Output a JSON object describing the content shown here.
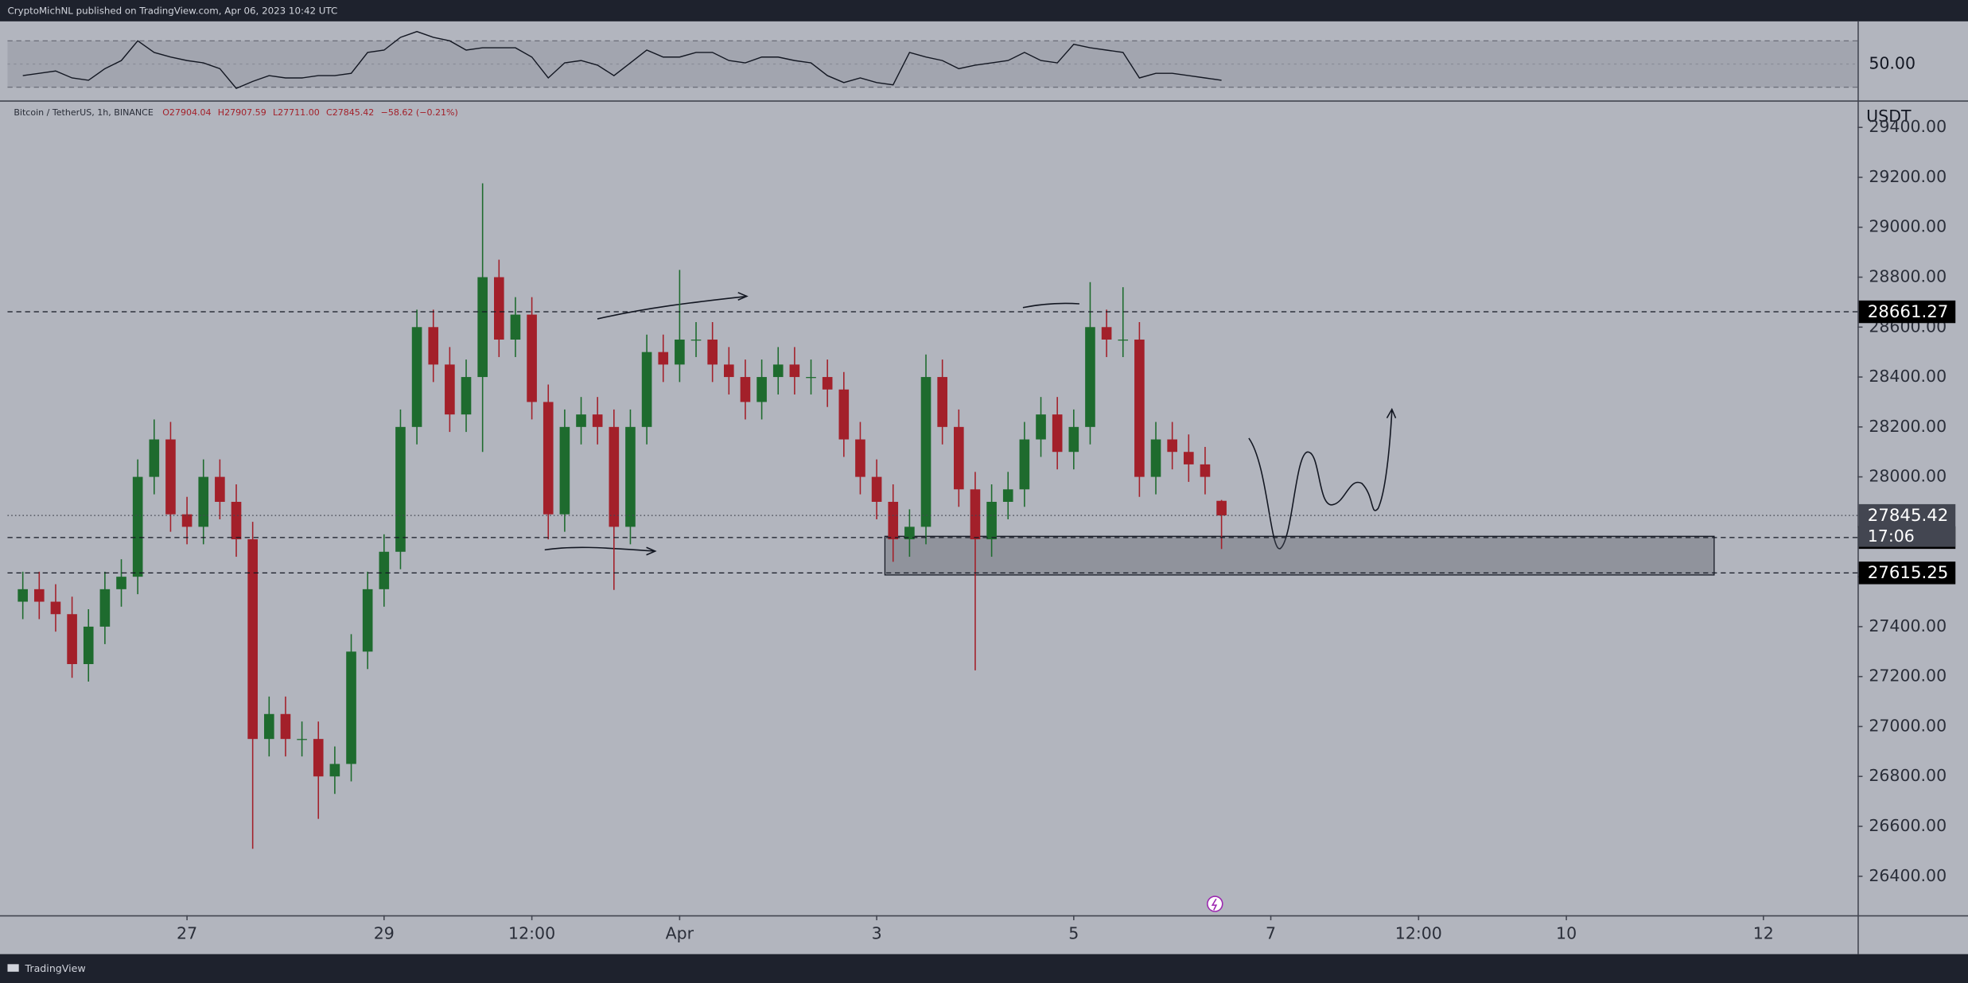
{
  "header": {
    "published": "CryptoMichNL published on TradingView.com, Apr 06, 2023 10:42 UTC"
  },
  "chart_data": {
    "type": "candlestick",
    "legend": {
      "symbol": "Bitcoin / TetherUS, 1h, BINANCE",
      "open": "O27904.04",
      "high": "H27907.59",
      "low": "L27711.00",
      "close": "C27845.42",
      "change": "−58.62 (−0.21%)"
    },
    "x": [
      -40,
      -36,
      -32,
      -28,
      -24,
      -20,
      -16,
      -12,
      -8,
      -4,
      0,
      4,
      8,
      12,
      16,
      20,
      24,
      28,
      32,
      36,
      40,
      44,
      48,
      52,
      56,
      60,
      64,
      68,
      72,
      76,
      80,
      84,
      88,
      92,
      96,
      100,
      104,
      108,
      112,
      116,
      120,
      124,
      128,
      132,
      136,
      140,
      144,
      148,
      152,
      156,
      160,
      164,
      168,
      172,
      176,
      180,
      184,
      188,
      192,
      196,
      200,
      204,
      208,
      212,
      216,
      220,
      224,
      228,
      232,
      236,
      240,
      244,
      248,
      252
    ],
    "open": [
      27500,
      27550,
      27500,
      27450,
      27250,
      27400,
      27550,
      27600,
      28000,
      28150,
      27850,
      27800,
      28000,
      27900,
      27750,
      26950,
      27050,
      26950,
      26950,
      26800,
      26850,
      27300,
      27550,
      27700,
      28200,
      28600,
      28450,
      28250,
      28400,
      28800,
      28550,
      28650,
      28300,
      27850,
      28200,
      28250,
      28200,
      27800,
      28200,
      28500,
      28450,
      28550,
      28550,
      28450,
      28400,
      28300,
      28400,
      28450,
      28400,
      28400,
      28350,
      28150,
      28000,
      27900,
      27750,
      27800,
      28400,
      28200,
      27950,
      27750,
      27900,
      27950,
      28150,
      28250,
      28100,
      28200,
      28600,
      28550,
      28550,
      28000,
      28150,
      28100,
      28050,
      27904.04
    ],
    "high": [
      27620,
      27620,
      27570,
      27520,
      27470,
      27620,
      27670,
      28070,
      28230,
      28220,
      27920,
      28070,
      28070,
      27970,
      27820,
      27120,
      27120,
      27020,
      27020,
      26920,
      27370,
      27620,
      27770,
      28270,
      28670,
      28670,
      28520,
      28470,
      29176,
      28870,
      28720,
      28720,
      28370,
      28270,
      28320,
      28320,
      28270,
      28270,
      28570,
      28570,
      28829,
      28620,
      28620,
      28520,
      28470,
      28470,
      28520,
      28520,
      28470,
      28470,
      28420,
      28220,
      28070,
      27970,
      27870,
      28490,
      28470,
      28270,
      28020,
      27970,
      28020,
      28220,
      28320,
      28320,
      28270,
      28780,
      28670,
      28760,
      28620,
      28220,
      28220,
      28170,
      28120,
      27907.59
    ],
    "low": [
      27430,
      27430,
      27380,
      27195,
      27180,
      27330,
      27480,
      27530,
      27930,
      27780,
      27730,
      27730,
      27830,
      27680,
      26510,
      26880,
      26880,
      26880,
      26630,
      26730,
      26780,
      27230,
      27480,
      27630,
      28130,
      28380,
      28180,
      28180,
      28100,
      28480,
      28480,
      28230,
      27750,
      27780,
      28130,
      28130,
      27547,
      27730,
      28130,
      28380,
      28380,
      28480,
      28380,
      28330,
      28230,
      28230,
      28330,
      28330,
      28330,
      28280,
      28080,
      27930,
      27830,
      27660,
      27680,
      27730,
      28130,
      27880,
      27225,
      27680,
      27830,
      27880,
      28080,
      28030,
      28030,
      28130,
      28480,
      28480,
      27920,
      27930,
      28030,
      27980,
      27930,
      27711
    ],
    "close": [
      27550,
      27500,
      27450,
      27250,
      27400,
      27550,
      27600,
      28000,
      28150,
      27850,
      27800,
      28000,
      27900,
      27750,
      26950,
      27050,
      26950,
      26950,
      26800,
      26850,
      27300,
      27550,
      27700,
      28200,
      28600,
      28450,
      28250,
      28400,
      28800,
      28550,
      28650,
      28300,
      27850,
      28200,
      28250,
      28200,
      27800,
      28200,
      28500,
      28450,
      28550,
      28550,
      28450,
      28400,
      28300,
      28400,
      28450,
      28400,
      28400,
      28350,
      28150,
      28000,
      27900,
      27750,
      27800,
      28400,
      28200,
      27950,
      27750,
      27900,
      27950,
      28150,
      28250,
      28100,
      28200,
      28600,
      28550,
      28550,
      28000,
      28150,
      28100,
      28050,
      28000,
      27845.42
    ],
    "up_color": "#1e6b2e",
    "down_color": "#a3202a",
    "xlim": [
      -43.72,
      406.93
    ],
    "xticks": [
      {
        "value": 0,
        "label": "27"
      },
      {
        "value": 48,
        "label": "29"
      },
      {
        "value": 84,
        "label": "12:00"
      },
      {
        "value": 120,
        "label": "Apr"
      },
      {
        "value": 168,
        "label": "3"
      },
      {
        "value": 216,
        "label": "5"
      },
      {
        "value": 264,
        "label": "7"
      },
      {
        "value": 300,
        "label": "12:00"
      },
      {
        "value": 336,
        "label": "10"
      },
      {
        "value": 384,
        "label": "12"
      }
    ],
    "ylim": [
      26244,
      29503
    ],
    "yticks": [
      {
        "value": 26400,
        "label": "26400.00"
      },
      {
        "value": 26600,
        "label": "26600.00"
      },
      {
        "value": 26800,
        "label": "26800.00"
      },
      {
        "value": 27000,
        "label": "27000.00"
      },
      {
        "value": 27200,
        "label": "27200.00"
      },
      {
        "value": 27400,
        "label": "27400.00"
      },
      {
        "value": 27600,
        "label": "27600.00"
      },
      {
        "value": 27800,
        "label": "27800.00"
      },
      {
        "value": 28000,
        "label": "28000.00"
      },
      {
        "value": 28200,
        "label": "28200.00"
      },
      {
        "value": 28400,
        "label": "28400.00"
      },
      {
        "value": 28600,
        "label": "28600.00"
      },
      {
        "value": 28800,
        "label": "28800.00"
      },
      {
        "value": 29000,
        "label": "29000.00"
      },
      {
        "value": 29200,
        "label": "29200.00"
      },
      {
        "value": 29400,
        "label": "29400.00"
      }
    ],
    "y_axis_label": "USDT",
    "price_lines": [
      28661.27,
      27756.84,
      27615.25
    ],
    "last_price": {
      "value": 27845.42,
      "countdown": "17:06"
    },
    "zone": {
      "x": [
        170,
        372
      ],
      "y": [
        27607,
        27762
      ]
    },
    "rsi": {
      "values": [
        40,
        42,
        44,
        38,
        36,
        46,
        53,
        70,
        60,
        56,
        53,
        51,
        46,
        29,
        35,
        40,
        38,
        38,
        40,
        40,
        42,
        60,
        62,
        73,
        78,
        73,
        70,
        62,
        64,
        64,
        64,
        56,
        38,
        51,
        53,
        49,
        40,
        51,
        62,
        56,
        56,
        60,
        60,
        53,
        51,
        56,
        56,
        53,
        51,
        40,
        34,
        38,
        34,
        32,
        60,
        56,
        53,
        46,
        49,
        51,
        53,
        60,
        53,
        51,
        67,
        64,
        62,
        60,
        38,
        42,
        42,
        40,
        38,
        36
      ],
      "ylim": [
        18.6,
        86.8
      ],
      "bands": [
        30,
        70
      ],
      "yticks": [
        {
          "value": 50,
          "label": "50.00"
        }
      ],
      "color": "#131722"
    }
  },
  "footer": {
    "brand": "TradingView"
  }
}
